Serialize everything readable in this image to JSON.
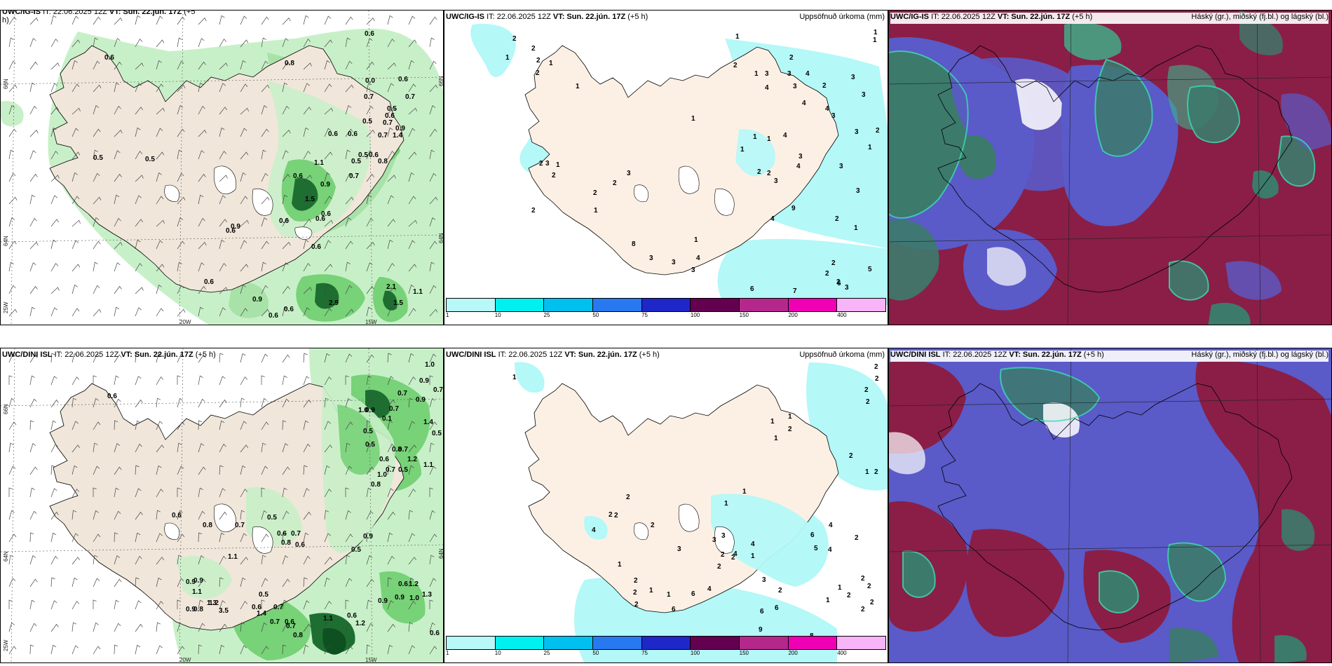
{
  "panels": {
    "top_left": {
      "model": "UWC/IG-IS",
      "it": "IT: 22.06.2025 12Z",
      "vt_label": "VT:",
      "vt": "Sun. 22.jún. 17Z",
      "lead": "(+5",
      "lead2": "h)"
    },
    "top_mid": {
      "model": "UWC/IG-IS",
      "it": "IT: 22.06.2025 12Z",
      "vt_label": "VT:",
      "vt": "Sun. 22.jún. 17Z",
      "lead": "(+5 h)",
      "right": "Uppsöfnuð úrkoma (mm)"
    },
    "top_right": {
      "model": "UWC/IG-IS",
      "it": "IT: 22.06.2025 12Z",
      "vt_label": "VT:",
      "vt": "Sun. 22.jún. 17Z",
      "lead": "(+5 h)",
      "right": "Háský (gr.), miðský (fj.bl.) og lágský (bl.)"
    },
    "bot_left": {
      "model": "UWC/DINI ISL",
      "it": "IT: 22.06.2025 12Z",
      "vt_label": "VT:",
      "vt": "Sun. 22.jún. 17Z",
      "lead": "(+5 h)"
    },
    "bot_mid": {
      "model": "UWC/DINI ISL",
      "it": "IT: 22.06.2025 12Z",
      "vt_label": "VT:",
      "vt": "Sun. 22.jún. 17Z",
      "lead": "(+5 h)",
      "right": "Uppsöfnuð úrkoma (mm)"
    },
    "bot_right": {
      "model": "UWC/DINI ISL",
      "it": "IT: 22.06.2025 12Z",
      "vt_label": "VT:",
      "vt": "Sun. 22.jún. 17Z",
      "lead": "(+5 h)",
      "right": "Háský (gr.), miðský (fj.bl.) og lágský (bl.)"
    }
  },
  "coords": {
    "n66": "66N",
    "n64": "64N",
    "w25": "25W",
    "w20": "20W",
    "w15": "15W"
  },
  "colorbar": {
    "ticks": [
      "1",
      "10",
      "25",
      "50",
      "75",
      "100",
      "150",
      "200",
      "400"
    ],
    "colors": [
      "#b8f8f8",
      "#00f0f0",
      "#00c0f0",
      "#2878f0",
      "#1e28c8",
      "#640050",
      "#b4288c",
      "#f000b4",
      "#f8b4f8"
    ]
  },
  "colors": {
    "land": "#f0e6da",
    "land_mid": "#fcf0e4",
    "precip_light": "#c8f0c8",
    "precip_mid": "#78d278",
    "precip_dark": "#1e6e32",
    "precip_cyan": "#b4f8f8",
    "cloud_high": "#8a1e46",
    "cloud_mid": "#5a5ac8",
    "cloud_low": "#3cb48c"
  },
  "labels": {
    "top_left": [
      {
        "t": "0.6",
        "x": 519,
        "y": 48
      },
      {
        "t": "0.6",
        "x": 148,
        "y": 82
      },
      {
        "t": "0.8",
        "x": 405,
        "y": 90
      },
      {
        "t": "0.6",
        "x": 567,
        "y": 113
      },
      {
        "t": "0.0",
        "x": 520,
        "y": 115
      },
      {
        "t": "0.7",
        "x": 518,
        "y": 138
      },
      {
        "t": "0.7",
        "x": 577,
        "y": 138
      },
      {
        "t": "0.5",
        "x": 551,
        "y": 155
      },
      {
        "t": "0.6",
        "x": 548,
        "y": 165
      },
      {
        "t": "0.5",
        "x": 516,
        "y": 173
      },
      {
        "t": "0.7",
        "x": 545,
        "y": 175
      },
      {
        "t": "0.9",
        "x": 563,
        "y": 183
      },
      {
        "t": "0.7",
        "x": 538,
        "y": 193
      },
      {
        "t": "1.4",
        "x": 559,
        "y": 193
      },
      {
        "t": "0.6",
        "x": 467,
        "y": 191
      },
      {
        "t": "0.6",
        "x": 495,
        "y": 191
      },
      {
        "t": "0.5",
        "x": 510,
        "y": 221
      },
      {
        "t": "0.6",
        "x": 525,
        "y": 221
      },
      {
        "t": "0.5",
        "x": 500,
        "y": 230
      },
      {
        "t": "0.8",
        "x": 538,
        "y": 230
      },
      {
        "t": "0.5",
        "x": 132,
        "y": 225
      },
      {
        "t": "0.5",
        "x": 206,
        "y": 227
      },
      {
        "t": "1.1",
        "x": 447,
        "y": 232
      },
      {
        "t": "0.6",
        "x": 417,
        "y": 251
      },
      {
        "t": "0.7",
        "x": 497,
        "y": 251
      },
      {
        "t": "0.9",
        "x": 456,
        "y": 263
      },
      {
        "t": "1.5",
        "x": 434,
        "y": 284
      },
      {
        "t": "0.6",
        "x": 457,
        "y": 305
      },
      {
        "t": "0.6",
        "x": 449,
        "y": 312
      },
      {
        "t": "0.6",
        "x": 397,
        "y": 315
      },
      {
        "t": "0.9",
        "x": 328,
        "y": 323
      },
      {
        "t": "0.6",
        "x": 321,
        "y": 329
      },
      {
        "t": "0.6",
        "x": 443,
        "y": 352
      },
      {
        "t": "0.6",
        "x": 290,
        "y": 402
      },
      {
        "t": "0.9",
        "x": 359,
        "y": 427
      },
      {
        "t": "2.9",
        "x": 468,
        "y": 432
      },
      {
        "t": "0.6",
        "x": 404,
        "y": 441
      },
      {
        "t": "2.1",
        "x": 550,
        "y": 409
      },
      {
        "t": "1.1",
        "x": 588,
        "y": 416
      },
      {
        "t": "1.5",
        "x": 560,
        "y": 432
      },
      {
        "t": "0.6",
        "x": 382,
        "y": 450
      }
    ],
    "top_mid": [
      {
        "t": "2",
        "x": 730,
        "y": 55
      },
      {
        "t": "1",
        "x": 720,
        "y": 82
      },
      {
        "t": "2",
        "x": 757,
        "y": 69
      },
      {
        "t": "2",
        "x": 764,
        "y": 86
      },
      {
        "t": "1",
        "x": 782,
        "y": 90
      },
      {
        "t": "2",
        "x": 763,
        "y": 104
      },
      {
        "t": "1",
        "x": 820,
        "y": 123
      },
      {
        "t": "1",
        "x": 1048,
        "y": 52
      },
      {
        "t": "1",
        "x": 1245,
        "y": 46
      },
      {
        "t": "1",
        "x": 1244,
        "y": 57
      },
      {
        "t": "2",
        "x": 1045,
        "y": 93
      },
      {
        "t": "1",
        "x": 1075,
        "y": 105
      },
      {
        "t": "3",
        "x": 1090,
        "y": 105
      },
      {
        "t": "4",
        "x": 1090,
        "y": 125
      },
      {
        "t": "2",
        "x": 1125,
        "y": 82
      },
      {
        "t": "3",
        "x": 1122,
        "y": 105
      },
      {
        "t": "3",
        "x": 1130,
        "y": 123
      },
      {
        "t": "4",
        "x": 1148,
        "y": 105
      },
      {
        "t": "3",
        "x": 1213,
        "y": 110
      },
      {
        "t": "2",
        "x": 1172,
        "y": 122
      },
      {
        "t": "3",
        "x": 1228,
        "y": 135
      },
      {
        "t": "4",
        "x": 1143,
        "y": 147
      },
      {
        "t": "4",
        "x": 1176,
        "y": 155
      },
      {
        "t": "3",
        "x": 1185,
        "y": 165
      },
      {
        "t": "3",
        "x": 1218,
        "y": 188
      },
      {
        "t": "2",
        "x": 1248,
        "y": 186
      },
      {
        "t": "1",
        "x": 1237,
        "y": 210
      },
      {
        "t": "1",
        "x": 985,
        "y": 169
      },
      {
        "t": "1",
        "x": 1073,
        "y": 195
      },
      {
        "t": "1",
        "x": 1093,
        "y": 198
      },
      {
        "t": "4",
        "x": 1116,
        "y": 193
      },
      {
        "t": "1",
        "x": 1055,
        "y": 213
      },
      {
        "t": "3",
        "x": 1138,
        "y": 223
      },
      {
        "t": "4",
        "x": 1135,
        "y": 237
      },
      {
        "t": "3",
        "x": 1196,
        "y": 237
      },
      {
        "t": "2",
        "x": 1079,
        "y": 245
      },
      {
        "t": "2",
        "x": 1093,
        "y": 247
      },
      {
        "t": "3",
        "x": 1103,
        "y": 258
      },
      {
        "t": "9",
        "x": 1128,
        "y": 297
      },
      {
        "t": "4",
        "x": 1098,
        "y": 312
      },
      {
        "t": "3",
        "x": 1220,
        "y": 272
      },
      {
        "t": "2",
        "x": 1190,
        "y": 312
      },
      {
        "t": "1",
        "x": 1217,
        "y": 325
      },
      {
        "t": "2",
        "x": 768,
        "y": 233
      },
      {
        "t": "3",
        "x": 777,
        "y": 233
      },
      {
        "t": "1",
        "x": 792,
        "y": 235
      },
      {
        "t": "2",
        "x": 786,
        "y": 250
      },
      {
        "t": "3",
        "x": 893,
        "y": 247
      },
      {
        "t": "2",
        "x": 873,
        "y": 261
      },
      {
        "t": "2",
        "x": 845,
        "y": 275
      },
      {
        "t": "1",
        "x": 846,
        "y": 300
      },
      {
        "t": "2",
        "x": 757,
        "y": 300
      },
      {
        "t": "1",
        "x": 989,
        "y": 342
      },
      {
        "t": "8",
        "x": 900,
        "y": 348
      },
      {
        "t": "3",
        "x": 925,
        "y": 368
      },
      {
        "t": "4",
        "x": 992,
        "y": 368
      },
      {
        "t": "3",
        "x": 957,
        "y": 374
      },
      {
        "t": "3",
        "x": 985,
        "y": 385
      },
      {
        "t": "2",
        "x": 1185,
        "y": 375
      },
      {
        "t": "2",
        "x": 1176,
        "y": 390
      },
      {
        "t": "2",
        "x": 1192,
        "y": 402
      },
      {
        "t": "5",
        "x": 1237,
        "y": 384
      },
      {
        "t": "6",
        "x": 1193,
        "y": 404
      },
      {
        "t": "3",
        "x": 1204,
        "y": 410
      },
      {
        "t": "6",
        "x": 1069,
        "y": 412
      },
      {
        "t": "7",
        "x": 1130,
        "y": 415
      }
    ],
    "bot_left": [
      {
        "t": "1.0",
        "x": 605,
        "y": 520
      },
      {
        "t": "0.9",
        "x": 597,
        "y": 543
      },
      {
        "t": "0.7",
        "x": 617,
        "y": 556
      },
      {
        "t": "0.7",
        "x": 566,
        "y": 561
      },
      {
        "t": "0.9",
        "x": 592,
        "y": 570
      },
      {
        "t": "0.7",
        "x": 554,
        "y": 583
      },
      {
        "t": "1.0",
        "x": 510,
        "y": 585
      },
      {
        "t": "0.9",
        "x": 520,
        "y": 585
      },
      {
        "t": "0.1",
        "x": 544,
        "y": 597
      },
      {
        "t": "1.4",
        "x": 603,
        "y": 602
      },
      {
        "t": "0.6",
        "x": 152,
        "y": 565
      },
      {
        "t": "0.5",
        "x": 517,
        "y": 615
      },
      {
        "t": "0.5",
        "x": 615,
        "y": 618
      },
      {
        "t": "0.5",
        "x": 520,
        "y": 634
      },
      {
        "t": "0.8",
        "x": 558,
        "y": 641
      },
      {
        "t": "0.7",
        "x": 567,
        "y": 641
      },
      {
        "t": "0.6",
        "x": 540,
        "y": 655
      },
      {
        "t": "1.2",
        "x": 580,
        "y": 655
      },
      {
        "t": "0.7",
        "x": 549,
        "y": 670
      },
      {
        "t": "0.5",
        "x": 567,
        "y": 670
      },
      {
        "t": "1.0",
        "x": 537,
        "y": 677
      },
      {
        "t": "1.1",
        "x": 603,
        "y": 663
      },
      {
        "t": "0.8",
        "x": 528,
        "y": 691
      },
      {
        "t": "0.6",
        "x": 244,
        "y": 735
      },
      {
        "t": "0.8",
        "x": 288,
        "y": 749
      },
      {
        "t": "0.7",
        "x": 334,
        "y": 749
      },
      {
        "t": "0.5",
        "x": 380,
        "y": 738
      },
      {
        "t": "0.6",
        "x": 394,
        "y": 761
      },
      {
        "t": "0.7",
        "x": 414,
        "y": 761
      },
      {
        "t": "0.8",
        "x": 400,
        "y": 774
      },
      {
        "t": "0.6",
        "x": 420,
        "y": 777
      },
      {
        "t": "0.9",
        "x": 517,
        "y": 765
      },
      {
        "t": "0.5",
        "x": 500,
        "y": 784
      },
      {
        "t": "1.1",
        "x": 324,
        "y": 794
      },
      {
        "t": "0.9",
        "x": 275,
        "y": 828
      },
      {
        "t": "0.9",
        "x": 264,
        "y": 830
      },
      {
        "t": "1.1",
        "x": 273,
        "y": 844
      },
      {
        "t": "1.3",
        "x": 294,
        "y": 860
      },
      {
        "t": "3.5",
        "x": 311,
        "y": 871
      },
      {
        "t": "1.2",
        "x": 297,
        "y": 860
      },
      {
        "t": "0.5",
        "x": 368,
        "y": 848
      },
      {
        "t": "0.6",
        "x": 358,
        "y": 866
      },
      {
        "t": "1.4",
        "x": 365,
        "y": 875
      },
      {
        "t": "0.7",
        "x": 384,
        "y": 887
      },
      {
        "t": "0.7",
        "x": 389,
        "y": 866
      },
      {
        "t": "0.6",
        "x": 405,
        "y": 887
      },
      {
        "t": "0.7",
        "x": 407,
        "y": 893
      },
      {
        "t": "0.8",
        "x": 417,
        "y": 906
      },
      {
        "t": "1.1",
        "x": 460,
        "y": 882
      },
      {
        "t": "0.6",
        "x": 494,
        "y": 878
      },
      {
        "t": "1.2",
        "x": 506,
        "y": 889
      },
      {
        "t": "0.9",
        "x": 264,
        "y": 869
      },
      {
        "t": "0.8",
        "x": 275,
        "y": 869
      },
      {
        "t": "0.9",
        "x": 538,
        "y": 857
      },
      {
        "t": "0.9",
        "x": 562,
        "y": 852
      },
      {
        "t": "0.6",
        "x": 567,
        "y": 833
      },
      {
        "t": "1.2",
        "x": 582,
        "y": 833
      },
      {
        "t": "1.0",
        "x": 583,
        "y": 853
      },
      {
        "t": "1.3",
        "x": 601,
        "y": 848
      },
      {
        "t": "0.6",
        "x": 612,
        "y": 903
      }
    ],
    "bot_mid": [
      {
        "t": "1",
        "x": 730,
        "y": 538
      },
      {
        "t": "2",
        "x": 1246,
        "y": 523
      },
      {
        "t": "2",
        "x": 1247,
        "y": 540
      },
      {
        "t": "2",
        "x": 1232,
        "y": 556
      },
      {
        "t": "2",
        "x": 1234,
        "y": 573
      },
      {
        "t": "1",
        "x": 1098,
        "y": 601
      },
      {
        "t": "1",
        "x": 1123,
        "y": 594
      },
      {
        "t": "2",
        "x": 1123,
        "y": 612
      },
      {
        "t": "1",
        "x": 1103,
        "y": 625
      },
      {
        "t": "2",
        "x": 1210,
        "y": 650
      },
      {
        "t": "1",
        "x": 1233,
        "y": 673
      },
      {
        "t": "2",
        "x": 1246,
        "y": 673
      },
      {
        "t": "1",
        "x": 1058,
        "y": 701
      },
      {
        "t": "1",
        "x": 1032,
        "y": 718
      },
      {
        "t": "2",
        "x": 892,
        "y": 709
      },
      {
        "t": "2",
        "x": 867,
        "y": 734
      },
      {
        "t": "2",
        "x": 875,
        "y": 735
      },
      {
        "t": "4",
        "x": 843,
        "y": 756
      },
      {
        "t": "2",
        "x": 927,
        "y": 749
      },
      {
        "t": "3",
        "x": 1028,
        "y": 764
      },
      {
        "t": "3",
        "x": 1015,
        "y": 770
      },
      {
        "t": "4",
        "x": 1070,
        "y": 776
      },
      {
        "t": "4",
        "x": 1045,
        "y": 790
      },
      {
        "t": "2",
        "x": 1042,
        "y": 795
      },
      {
        "t": "2",
        "x": 1027,
        "y": 791
      },
      {
        "t": "6",
        "x": 1155,
        "y": 763
      },
      {
        "t": "4",
        "x": 1181,
        "y": 749
      },
      {
        "t": "5",
        "x": 1160,
        "y": 782
      },
      {
        "t": "4",
        "x": 1180,
        "y": 784
      },
      {
        "t": "2",
        "x": 1218,
        "y": 767
      },
      {
        "t": "3",
        "x": 965,
        "y": 783
      },
      {
        "t": "1",
        "x": 1070,
        "y": 793
      },
      {
        "t": "2",
        "x": 1022,
        "y": 808
      },
      {
        "t": "3",
        "x": 1086,
        "y": 827
      },
      {
        "t": "1",
        "x": 880,
        "y": 805
      },
      {
        "t": "2",
        "x": 903,
        "y": 828
      },
      {
        "t": "1",
        "x": 925,
        "y": 842
      },
      {
        "t": "2",
        "x": 902,
        "y": 845
      },
      {
        "t": "1",
        "x": 950,
        "y": 848
      },
      {
        "t": "2",
        "x": 904,
        "y": 862
      },
      {
        "t": "6",
        "x": 957,
        "y": 869
      },
      {
        "t": "2",
        "x": 1109,
        "y": 842
      },
      {
        "t": "1",
        "x": 1194,
        "y": 838
      },
      {
        "t": "2",
        "x": 1227,
        "y": 825
      },
      {
        "t": "2",
        "x": 1236,
        "y": 836
      },
      {
        "t": "2",
        "x": 1207,
        "y": 849
      },
      {
        "t": "6",
        "x": 985,
        "y": 847
      },
      {
        "t": "4",
        "x": 1008,
        "y": 840
      },
      {
        "t": "1",
        "x": 1177,
        "y": 856
      },
      {
        "t": "2",
        "x": 1240,
        "y": 859
      },
      {
        "t": "2",
        "x": 1227,
        "y": 869
      },
      {
        "t": "6",
        "x": 1083,
        "y": 872
      },
      {
        "t": "6",
        "x": 1104,
        "y": 867
      },
      {
        "t": "9",
        "x": 1081,
        "y": 898
      },
      {
        "t": "8",
        "x": 1154,
        "y": 907
      }
    ]
  },
  "precip_labels_extra": {
    "lead_bottom": "h)"
  }
}
